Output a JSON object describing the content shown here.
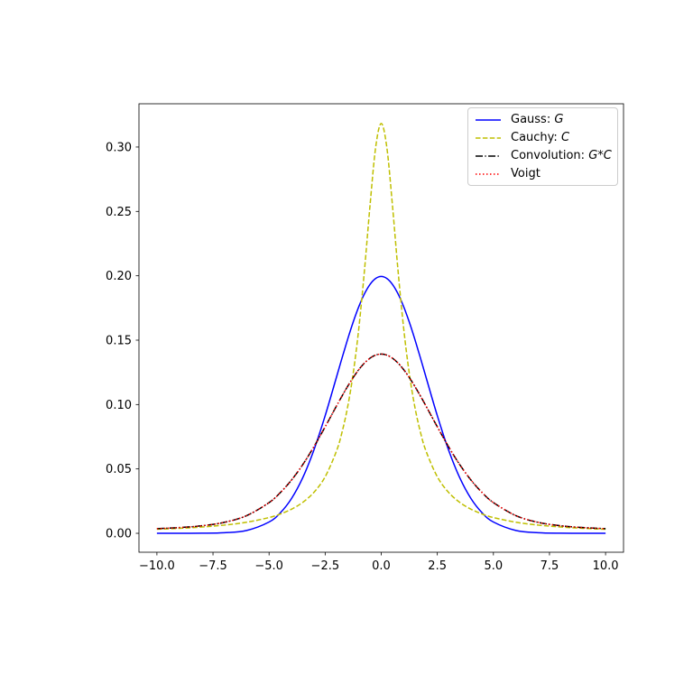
{
  "figure": {
    "background": "#ffffff"
  },
  "chart_data": {
    "type": "line",
    "title": "",
    "xlabel": "",
    "ylabel": "",
    "grid": false,
    "legend_position": "upper right",
    "xlim": [
      -10.8,
      10.8
    ],
    "ylim": [
      -0.0147,
      0.3336
    ],
    "xticks": {
      "values": [
        -10,
        -7.5,
        -5,
        -2.5,
        0,
        2.5,
        5,
        7.5,
        10
      ],
      "labels": [
        "−10.0",
        "−7.5",
        "−5.0",
        "−2.5",
        "0.0",
        "2.5",
        "5.0",
        "7.5",
        "10.0"
      ]
    },
    "yticks": {
      "values": [
        0,
        0.05,
        0.1,
        0.15,
        0.2,
        0.25,
        0.3
      ],
      "labels": [
        "0.00",
        "0.05",
        "0.10",
        "0.15",
        "0.20",
        "0.25",
        "0.30"
      ]
    },
    "x": [
      -10,
      -9,
      -8,
      -7,
      -6,
      -5,
      -4.5,
      -4,
      -3.5,
      -3,
      -2.5,
      -2,
      -1.75,
      -1.5,
      -1.25,
      -1,
      -0.75,
      -0.5,
      -0.25,
      0,
      0.25,
      0.5,
      0.75,
      1,
      1.25,
      1.5,
      1.75,
      2,
      2.5,
      3,
      3.5,
      4,
      4.5,
      5,
      6,
      7,
      8,
      9,
      10
    ],
    "series": [
      {
        "name": "gauss",
        "legend_text": "Gauss: ",
        "legend_math": "G",
        "color": "#0000ff",
        "linestyle": "solid",
        "values": [
          1e-06,
          8e-06,
          6.7e-05,
          0.000436,
          0.002216,
          0.008764,
          0.01587,
          0.027,
          0.043124,
          0.064759,
          0.091325,
          0.120985,
          0.136029,
          0.150568,
          0.164083,
          0.176033,
          0.185927,
          0.193334,
          0.197924,
          0.199471,
          0.197924,
          0.193334,
          0.185927,
          0.176033,
          0.164083,
          0.150568,
          0.136029,
          0.120985,
          0.091325,
          0.064759,
          0.043124,
          0.027,
          0.01587,
          0.008764,
          0.002216,
          0.000436,
          6.7e-05,
          8e-06,
          1e-06
        ]
      },
      {
        "name": "cauchy",
        "legend_text": "Cauchy: ",
        "legend_math": "C",
        "color": "#bfbf00",
        "linestyle": "dashed",
        "values": [
          0.003151,
          0.003882,
          0.004897,
          0.006366,
          0.008603,
          0.012243,
          0.014979,
          0.018724,
          0.024023,
          0.031831,
          0.043904,
          0.063662,
          0.078353,
          0.097941,
          0.124218,
          0.159155,
          0.203718,
          0.254648,
          0.299587,
          0.31831,
          0.299587,
          0.254648,
          0.203718,
          0.159155,
          0.124218,
          0.097941,
          0.078353,
          0.063662,
          0.043904,
          0.031831,
          0.024023,
          0.018724,
          0.014979,
          0.012243,
          0.008603,
          0.006366,
          0.004897,
          0.003882,
          0.003151
        ]
      },
      {
        "name": "convolution",
        "legend_text": "Convolution: ",
        "legend_math": "G*C",
        "color": "#000000",
        "linestyle": "dashdot",
        "values": [
          0.0036,
          0.00445,
          0.00585,
          0.00849,
          0.01374,
          0.02387,
          0.03158,
          0.04138,
          0.05333,
          0.06728,
          0.08269,
          0.09871,
          0.10657,
          0.11406,
          0.12099,
          0.12712,
          0.1322,
          0.13601,
          0.1384,
          0.1392,
          0.1384,
          0.13601,
          0.1322,
          0.12712,
          0.12099,
          0.11406,
          0.10657,
          0.09871,
          0.08269,
          0.06728,
          0.05333,
          0.04138,
          0.03158,
          0.02387,
          0.01374,
          0.00849,
          0.00585,
          0.00445,
          0.0036
        ]
      },
      {
        "name": "voigt",
        "legend_text": "Voigt",
        "legend_math": "",
        "color": "#ff0000",
        "linestyle": "dotted",
        "values": [
          0.0036,
          0.00445,
          0.00585,
          0.00849,
          0.01374,
          0.02387,
          0.03158,
          0.04138,
          0.05333,
          0.06728,
          0.08269,
          0.09871,
          0.10657,
          0.11406,
          0.12099,
          0.12712,
          0.1322,
          0.13601,
          0.1384,
          0.1392,
          0.1384,
          0.13601,
          0.1322,
          0.12712,
          0.12099,
          0.11406,
          0.10657,
          0.09871,
          0.08269,
          0.06728,
          0.05333,
          0.04138,
          0.03158,
          0.02387,
          0.01374,
          0.00849,
          0.00585,
          0.00445,
          0.0036
        ]
      }
    ]
  }
}
